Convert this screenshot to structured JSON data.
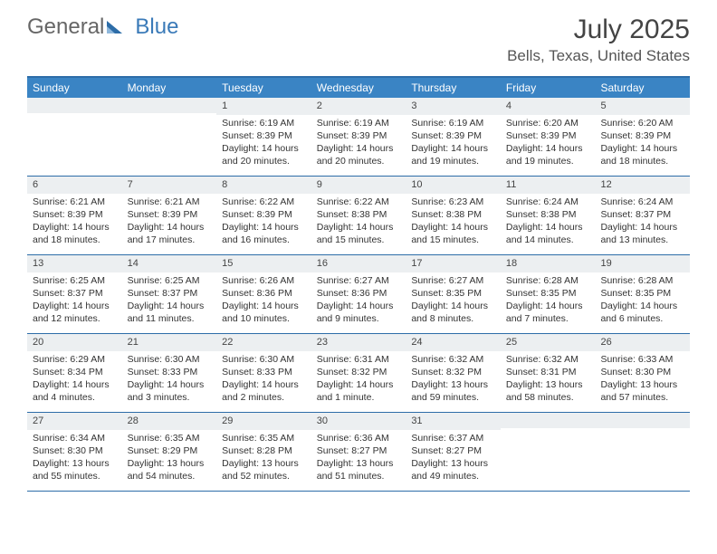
{
  "logo": {
    "text1": "General",
    "text2": "Blue",
    "accent": "#2d6da8"
  },
  "title": "July 2025",
  "location": "Bells, Texas, United States",
  "colors": {
    "header_bg": "#3a84c4",
    "header_text": "#ffffff",
    "border": "#2d6da8",
    "daynum_bg": "#eceff1",
    "text": "#333333"
  },
  "day_names": [
    "Sunday",
    "Monday",
    "Tuesday",
    "Wednesday",
    "Thursday",
    "Friday",
    "Saturday"
  ],
  "weeks": [
    [
      null,
      null,
      {
        "n": "1",
        "sr": "Sunrise: 6:19 AM",
        "ss": "Sunset: 8:39 PM",
        "dl": "Daylight: 14 hours and 20 minutes."
      },
      {
        "n": "2",
        "sr": "Sunrise: 6:19 AM",
        "ss": "Sunset: 8:39 PM",
        "dl": "Daylight: 14 hours and 20 minutes."
      },
      {
        "n": "3",
        "sr": "Sunrise: 6:19 AM",
        "ss": "Sunset: 8:39 PM",
        "dl": "Daylight: 14 hours and 19 minutes."
      },
      {
        "n": "4",
        "sr": "Sunrise: 6:20 AM",
        "ss": "Sunset: 8:39 PM",
        "dl": "Daylight: 14 hours and 19 minutes."
      },
      {
        "n": "5",
        "sr": "Sunrise: 6:20 AM",
        "ss": "Sunset: 8:39 PM",
        "dl": "Daylight: 14 hours and 18 minutes."
      }
    ],
    [
      {
        "n": "6",
        "sr": "Sunrise: 6:21 AM",
        "ss": "Sunset: 8:39 PM",
        "dl": "Daylight: 14 hours and 18 minutes."
      },
      {
        "n": "7",
        "sr": "Sunrise: 6:21 AM",
        "ss": "Sunset: 8:39 PM",
        "dl": "Daylight: 14 hours and 17 minutes."
      },
      {
        "n": "8",
        "sr": "Sunrise: 6:22 AM",
        "ss": "Sunset: 8:39 PM",
        "dl": "Daylight: 14 hours and 16 minutes."
      },
      {
        "n": "9",
        "sr": "Sunrise: 6:22 AM",
        "ss": "Sunset: 8:38 PM",
        "dl": "Daylight: 14 hours and 15 minutes."
      },
      {
        "n": "10",
        "sr": "Sunrise: 6:23 AM",
        "ss": "Sunset: 8:38 PM",
        "dl": "Daylight: 14 hours and 15 minutes."
      },
      {
        "n": "11",
        "sr": "Sunrise: 6:24 AM",
        "ss": "Sunset: 8:38 PM",
        "dl": "Daylight: 14 hours and 14 minutes."
      },
      {
        "n": "12",
        "sr": "Sunrise: 6:24 AM",
        "ss": "Sunset: 8:37 PM",
        "dl": "Daylight: 14 hours and 13 minutes."
      }
    ],
    [
      {
        "n": "13",
        "sr": "Sunrise: 6:25 AM",
        "ss": "Sunset: 8:37 PM",
        "dl": "Daylight: 14 hours and 12 minutes."
      },
      {
        "n": "14",
        "sr": "Sunrise: 6:25 AM",
        "ss": "Sunset: 8:37 PM",
        "dl": "Daylight: 14 hours and 11 minutes."
      },
      {
        "n": "15",
        "sr": "Sunrise: 6:26 AM",
        "ss": "Sunset: 8:36 PM",
        "dl": "Daylight: 14 hours and 10 minutes."
      },
      {
        "n": "16",
        "sr": "Sunrise: 6:27 AM",
        "ss": "Sunset: 8:36 PM",
        "dl": "Daylight: 14 hours and 9 minutes."
      },
      {
        "n": "17",
        "sr": "Sunrise: 6:27 AM",
        "ss": "Sunset: 8:35 PM",
        "dl": "Daylight: 14 hours and 8 minutes."
      },
      {
        "n": "18",
        "sr": "Sunrise: 6:28 AM",
        "ss": "Sunset: 8:35 PM",
        "dl": "Daylight: 14 hours and 7 minutes."
      },
      {
        "n": "19",
        "sr": "Sunrise: 6:28 AM",
        "ss": "Sunset: 8:35 PM",
        "dl": "Daylight: 14 hours and 6 minutes."
      }
    ],
    [
      {
        "n": "20",
        "sr": "Sunrise: 6:29 AM",
        "ss": "Sunset: 8:34 PM",
        "dl": "Daylight: 14 hours and 4 minutes."
      },
      {
        "n": "21",
        "sr": "Sunrise: 6:30 AM",
        "ss": "Sunset: 8:33 PM",
        "dl": "Daylight: 14 hours and 3 minutes."
      },
      {
        "n": "22",
        "sr": "Sunrise: 6:30 AM",
        "ss": "Sunset: 8:33 PM",
        "dl": "Daylight: 14 hours and 2 minutes."
      },
      {
        "n": "23",
        "sr": "Sunrise: 6:31 AM",
        "ss": "Sunset: 8:32 PM",
        "dl": "Daylight: 14 hours and 1 minute."
      },
      {
        "n": "24",
        "sr": "Sunrise: 6:32 AM",
        "ss": "Sunset: 8:32 PM",
        "dl": "Daylight: 13 hours and 59 minutes."
      },
      {
        "n": "25",
        "sr": "Sunrise: 6:32 AM",
        "ss": "Sunset: 8:31 PM",
        "dl": "Daylight: 13 hours and 58 minutes."
      },
      {
        "n": "26",
        "sr": "Sunrise: 6:33 AM",
        "ss": "Sunset: 8:30 PM",
        "dl": "Daylight: 13 hours and 57 minutes."
      }
    ],
    [
      {
        "n": "27",
        "sr": "Sunrise: 6:34 AM",
        "ss": "Sunset: 8:30 PM",
        "dl": "Daylight: 13 hours and 55 minutes."
      },
      {
        "n": "28",
        "sr": "Sunrise: 6:35 AM",
        "ss": "Sunset: 8:29 PM",
        "dl": "Daylight: 13 hours and 54 minutes."
      },
      {
        "n": "29",
        "sr": "Sunrise: 6:35 AM",
        "ss": "Sunset: 8:28 PM",
        "dl": "Daylight: 13 hours and 52 minutes."
      },
      {
        "n": "30",
        "sr": "Sunrise: 6:36 AM",
        "ss": "Sunset: 8:27 PM",
        "dl": "Daylight: 13 hours and 51 minutes."
      },
      {
        "n": "31",
        "sr": "Sunrise: 6:37 AM",
        "ss": "Sunset: 8:27 PM",
        "dl": "Daylight: 13 hours and 49 minutes."
      },
      null,
      null
    ]
  ]
}
